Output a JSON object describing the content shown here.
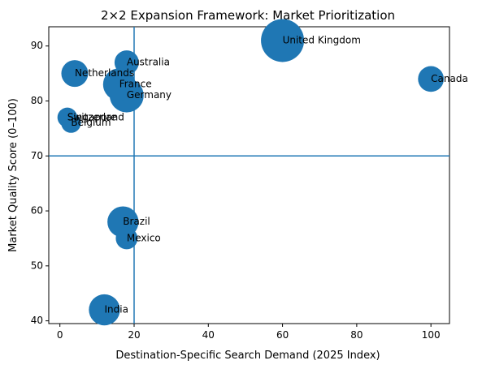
{
  "chart_data": {
    "type": "scatter",
    "title": "2×2 Expansion Framework: Market Prioritization",
    "xlabel": "Destination-Specific Search Demand (2025 Index)",
    "ylabel": "Market Quality Score (0–100)",
    "xlim": [
      -3,
      105
    ],
    "ylim": [
      39.5,
      93.5
    ],
    "xticks": [
      0,
      20,
      40,
      60,
      80,
      100
    ],
    "yticks": [
      40,
      50,
      60,
      70,
      80,
      90
    ],
    "xtick_labels": [
      "0",
      "20",
      "40",
      "60",
      "80",
      "100"
    ],
    "ytick_labels": [
      "40",
      "50",
      "60",
      "70",
      "80",
      "90"
    ],
    "grid": false,
    "legend": "none",
    "reference_lines": {
      "vertical_x": 20,
      "horizontal_y": 70
    },
    "series": [
      {
        "points": [
          {
            "label": "United Kingdom",
            "x": 60,
            "y": 91,
            "size": 100
          },
          {
            "label": "Australia",
            "x": 18,
            "y": 87,
            "size": 18
          },
          {
            "label": "Netherlands",
            "x": 4,
            "y": 85,
            "size": 25
          },
          {
            "label": "Canada",
            "x": 100,
            "y": 84,
            "size": 22
          },
          {
            "label": "France",
            "x": 16,
            "y": 83,
            "size": 45
          },
          {
            "label": "Germany",
            "x": 18,
            "y": 81,
            "size": 52
          },
          {
            "label": "Switzerland",
            "x": 2,
            "y": 77,
            "size": 8
          },
          {
            "label": "Singapore",
            "x": 2,
            "y": 77,
            "size": 6
          },
          {
            "label": "Belgium",
            "x": 3,
            "y": 76,
            "size": 8
          },
          {
            "label": "Brazil",
            "x": 17,
            "y": 58,
            "size": 40
          },
          {
            "label": "Mexico",
            "x": 18,
            "y": 55,
            "size": 12
          },
          {
            "label": "India",
            "x": 12,
            "y": 42,
            "size": 40
          }
        ]
      }
    ],
    "colors": {
      "marker": "#1f77b4",
      "reference_line": "#1f77b4",
      "axis": "#000000",
      "background": "#ffffff"
    }
  }
}
